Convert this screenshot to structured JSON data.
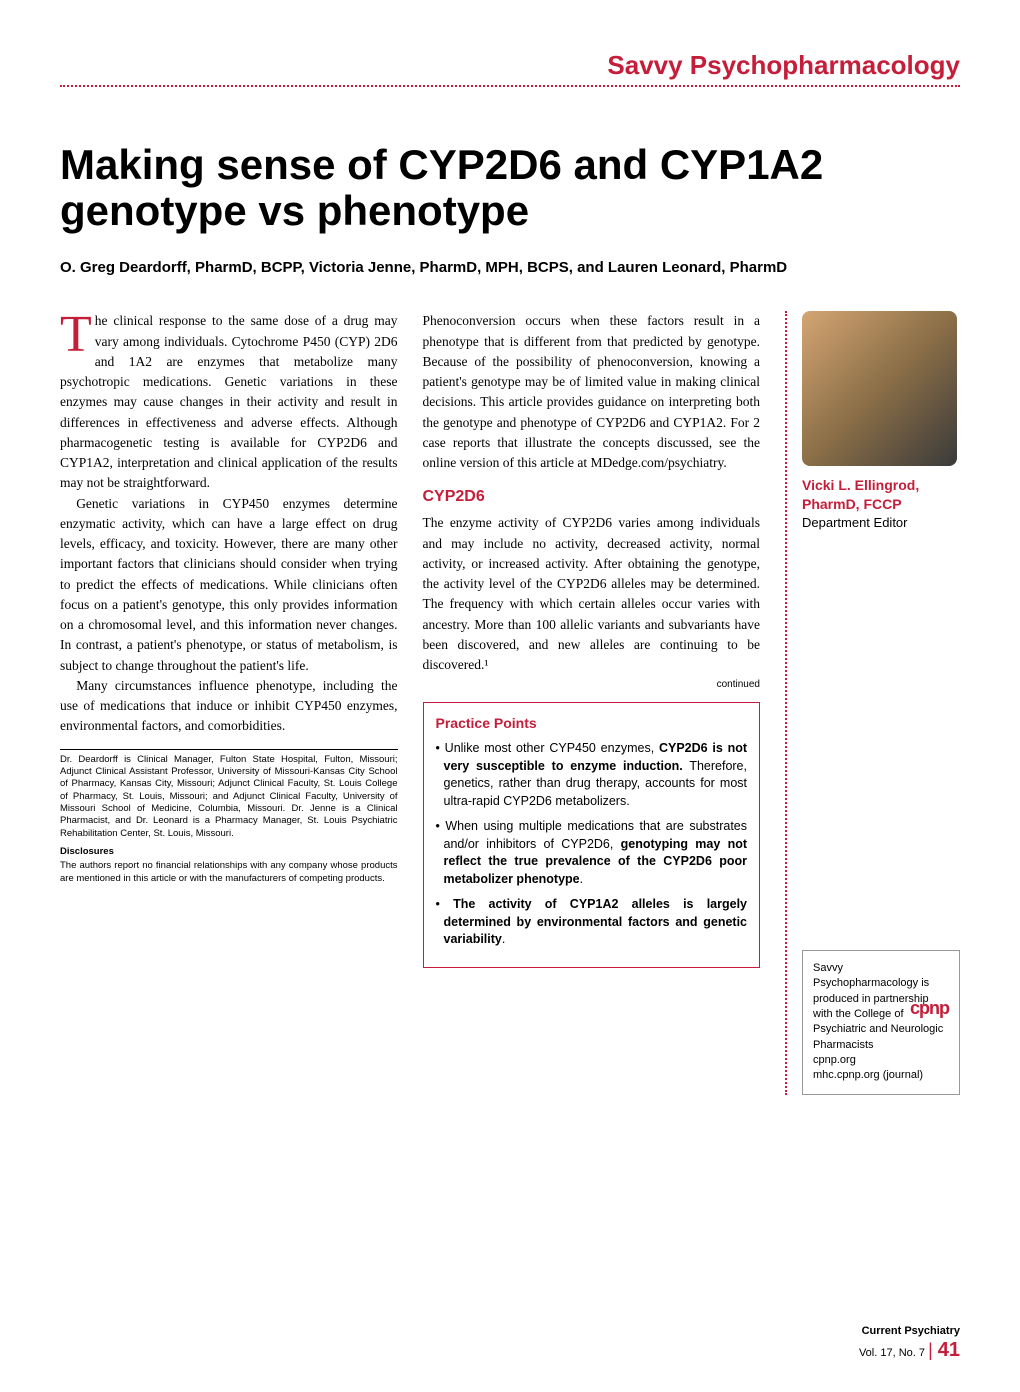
{
  "section_header": "Savvy Psychopharmacology",
  "title": "Making sense of CYP2D6 and CYP1A2 genotype vs phenotype",
  "authors": "O. Greg Deardorff, PharmD, BCPP, Victoria Jenne, PharmD, MPH, BCPS, and Lauren Leonard, PharmD",
  "col1": {
    "p1_dropcap": "T",
    "p1": "he clinical response to the same dose of a drug may vary among individuals. Cytochrome P450 (CYP) 2D6 and 1A2 are enzymes that metabolize many psychotropic medications. Genetic variations in these enzymes may cause changes in their activity and result in differences in effectiveness and adverse effects. Although pharmacogenetic testing is available for CYP2D6 and CYP1A2, interpretation and clinical application of the results may not be straightforward.",
    "p2": "Genetic variations in CYP450 enzymes determine enzymatic activity, which can have a large effect on drug levels, efficacy, and toxicity. However, there are many other important factors that clinicians should consider when trying to predict the effects of medications. While clinicians often focus on a patient's genotype, this only provides information on a chromosomal level, and this information never changes. In contrast, a patient's phenotype, or status of metabolism, is subject to change throughout the patient's life.",
    "p3": "Many circumstances influence phenotype, including the use of medications that induce or inhibit CYP450 enzymes, environmental factors, and comorbidities."
  },
  "footnotes": {
    "affiliations": "Dr. Deardorff is Clinical Manager, Fulton State Hospital, Fulton, Missouri; Adjunct Clinical Assistant Professor, University of Missouri-Kansas City School of Pharmacy, Kansas City, Missouri; Adjunct Clinical Faculty, St. Louis College of Pharmacy, St. Louis, Missouri; and Adjunct Clinical Faculty, University of Missouri School of Medicine, Columbia, Missouri. Dr. Jenne is a Clinical Pharmacist, and Dr. Leonard is a Pharmacy Manager, St. Louis Psychiatric Rehabilitation Center, St. Louis, Missouri.",
    "disclosures_heading": "Disclosures",
    "disclosures": "The authors report no financial relationships with any company whose products are mentioned in this article or with the manufacturers of competing products."
  },
  "col2": {
    "p1": "Phenoconversion occurs when these factors result in a phenotype that is different from that predicted by genotype. Because of the possibility of phenoconversion, knowing a patient's genotype may be of limited value in making clinical decisions. This article provides guidance on interpreting both the genotype and phenotype of CYP2D6 and CYP1A2. For 2 case reports that illustrate the concepts discussed, see the online version of this article at MDedge.com/psychiatry.",
    "heading": "CYP2D6",
    "p2": "The enzyme activity of CYP2D6 varies among individuals and may include no activity, decreased activity, normal activity, or increased activity. After obtaining the genotype, the activity level of the CYP2D6 alleles may be determined. The frequency with which certain alleles occur varies with ancestry. More than 100 allelic variants and subvariants have been discovered, and new alleles are continuing to be discovered.¹",
    "continued": "continued"
  },
  "practice": {
    "title": "Practice Points",
    "items": [
      {
        "pre": "Unlike most other CYP450 enzymes, ",
        "bold": "CYP2D6 is not very susceptible to enzyme induction.",
        "post": " Therefore, genetics, rather than drug therapy, accounts for most ultra-rapid CYP2D6 metabolizers."
      },
      {
        "pre": "When using multiple medications that are substrates and/or inhibitors of CYP2D6, ",
        "bold": "genotyping may not reflect the true prevalence of the CYP2D6 poor metabolizer phenotype",
        "post": "."
      },
      {
        "pre": "",
        "bold": "The activity of CYP1A2 alleles is largely determined by environmental factors and genetic variability",
        "post": "."
      }
    ]
  },
  "editor": {
    "name": "Vicki L. Ellingrod, PharmD, FCCP",
    "title": "Department Editor"
  },
  "partnership": {
    "text1": "Savvy Psychopharmacology is produced in partnership with the College of Psychiatric and Neurologic Pharmacists",
    "url1": "cpnp.org",
    "url2": "mhc.cpnp.org (journal)",
    "logo": "cpnp"
  },
  "footer": {
    "journal": "Current Psychiatry",
    "vol": "Vol. 17, No. 7",
    "page": "41"
  },
  "colors": {
    "accent": "#c41e3a",
    "text": "#000000",
    "background": "#ffffff"
  }
}
